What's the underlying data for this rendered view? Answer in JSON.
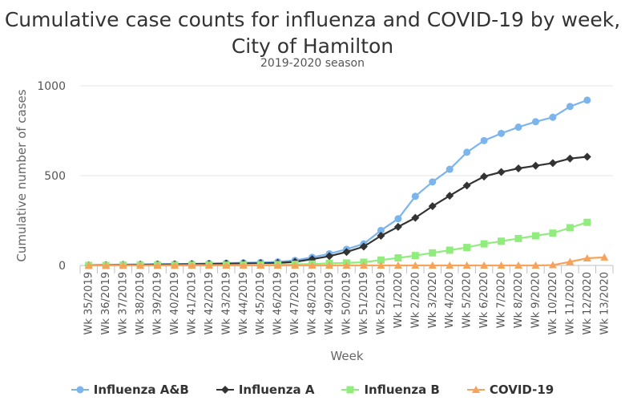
{
  "chart_data": {
    "type": "line",
    "title": "Cumulative case counts for influenza and COVID-19 by week, City of Hamilton",
    "subtitle": "2019-2020 season",
    "xlabel": "Week",
    "ylabel": "Cumulative number of cases",
    "ylim": [
      0,
      1000
    ],
    "yticks": [
      0,
      500,
      1000
    ],
    "grid": "horizontal",
    "legend": "bottom",
    "categories": [
      "Wk 35/2019",
      "Wk 36/2019",
      "Wk 37/2019",
      "Wk 38/2019",
      "Wk 39/2019",
      "Wk 40/2019",
      "Wk 41/2019",
      "Wk 42/2019",
      "Wk 43/2019",
      "Wk 44/2019",
      "Wk 45/2019",
      "Wk 46/2019",
      "Wk 47/2019",
      "Wk 48/2019",
      "Wk 49/2019",
      "Wk 50/2019",
      "Wk 51/2019",
      "Wk 52/2019",
      "Wk 1/2020",
      "Wk 2/2020",
      "Wk 3/2020",
      "Wk 4/2020",
      "Wk 5/2020",
      "Wk 6/2020",
      "Wk 7/2020",
      "Wk 8/2020",
      "Wk 9/2020",
      "Wk 10/2020",
      "Wk 11/2020",
      "Wk 12/2020",
      "Wk 13/2020"
    ],
    "series": [
      {
        "name": "Influenza A&B",
        "color": "#7cb5ec",
        "marker": "circle",
        "values": [
          2,
          3,
          5,
          6,
          7,
          8,
          9,
          11,
          13,
          15,
          17,
          20,
          28,
          45,
          65,
          90,
          120,
          195,
          260,
          385,
          465,
          535,
          630,
          695,
          735,
          770,
          800,
          825,
          885,
          920,
          null
        ]
      },
      {
        "name": "Influenza A",
        "color": "#333333",
        "marker": "diamond",
        "values": [
          1,
          2,
          3,
          4,
          5,
          6,
          7,
          8,
          10,
          11,
          12,
          14,
          20,
          35,
          52,
          75,
          105,
          165,
          215,
          265,
          330,
          388,
          445,
          495,
          520,
          540,
          555,
          570,
          595,
          605,
          null
        ]
      },
      {
        "name": "Influenza B",
        "color": "#90ed7d",
        "marker": "square",
        "values": [
          0,
          0,
          1,
          1,
          1,
          1,
          2,
          2,
          2,
          3,
          4,
          5,
          6,
          8,
          12,
          14,
          18,
          30,
          42,
          55,
          70,
          85,
          100,
          120,
          135,
          150,
          165,
          180,
          210,
          240,
          null
        ]
      },
      {
        "name": "COVID-19",
        "color": "#f7a35c",
        "marker": "triangle",
        "values": [
          0,
          0,
          0,
          0,
          0,
          0,
          0,
          0,
          0,
          0,
          0,
          0,
          0,
          0,
          0,
          0,
          0,
          0,
          0,
          0,
          0,
          0,
          0,
          0,
          0,
          0,
          0,
          2,
          20,
          40,
          45
        ]
      }
    ]
  }
}
